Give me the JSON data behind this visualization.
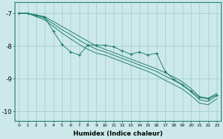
{
  "xlabel": "Humidex (Indice chaleur)",
  "x": [
    0,
    1,
    2,
    3,
    4,
    5,
    6,
    7,
    8,
    9,
    10,
    11,
    12,
    13,
    14,
    15,
    16,
    17,
    18,
    19,
    20,
    21,
    22,
    23
  ],
  "line1": [
    -7.0,
    -7.0,
    -7.05,
    -7.1,
    -7.25,
    -7.4,
    -7.55,
    -7.7,
    -7.85,
    -8.0,
    -8.1,
    -8.2,
    -8.3,
    -8.4,
    -8.5,
    -8.6,
    -8.7,
    -8.82,
    -8.95,
    -9.1,
    -9.3,
    -9.55,
    -9.6,
    -9.45
  ],
  "line2": [
    -7.0,
    -7.0,
    -7.07,
    -7.15,
    -7.32,
    -7.5,
    -7.65,
    -7.82,
    -7.97,
    -8.1,
    -8.18,
    -8.28,
    -8.38,
    -8.48,
    -8.58,
    -8.68,
    -8.78,
    -8.92,
    -9.05,
    -9.2,
    -9.4,
    -9.65,
    -9.7,
    -9.52
  ],
  "line3": [
    -7.0,
    -7.0,
    -7.1,
    -7.2,
    -7.4,
    -7.6,
    -7.78,
    -7.95,
    -8.1,
    -8.22,
    -8.28,
    -8.38,
    -8.48,
    -8.58,
    -8.68,
    -8.78,
    -8.9,
    -9.05,
    -9.18,
    -9.32,
    -9.52,
    -9.75,
    -9.8,
    -9.62
  ],
  "scatter_y": [
    -7.0,
    -7.0,
    -7.05,
    -7.12,
    -7.55,
    -7.95,
    -8.18,
    -8.28,
    -7.97,
    -7.97,
    -7.98,
    -8.02,
    -8.15,
    -8.25,
    -8.18,
    -8.28,
    -8.22,
    -8.78,
    -9.02,
    -9.18,
    -9.38,
    -9.58,
    -9.62,
    -9.5
  ],
  "bg_color": "#cce8e8",
  "line_color": "#1a7a6e",
  "grid_color": "#99cccc",
  "ylim": [
    -10.3,
    -6.65
  ],
  "yticks": [
    -10,
    -9,
    -8,
    -7
  ],
  "xlim": [
    -0.5,
    23.5
  ],
  "figwidth": 3.2,
  "figheight": 2.0,
  "dpi": 100
}
